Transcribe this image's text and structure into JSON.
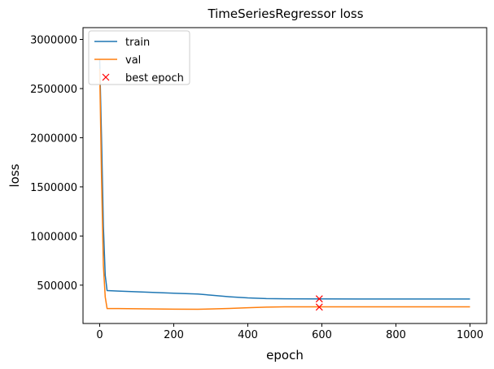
{
  "chart_data": {
    "type": "line",
    "title": "TimeSeriesRegressor loss",
    "xlabel": "epoch",
    "ylabel": "loss",
    "xlim": [
      -45,
      1045
    ],
    "ylim": [
      110000,
      3120000
    ],
    "xticks": [
      0,
      200,
      400,
      600,
      800,
      1000
    ],
    "yticks": [
      500000,
      1000000,
      1500000,
      2000000,
      2500000,
      3000000
    ],
    "series": [
      {
        "name": "train",
        "color": "#1f77b4",
        "x": [
          0,
          5,
          10,
          15,
          20,
          50,
          100,
          150,
          200,
          265,
          300,
          350,
          400,
          450,
          500,
          600,
          700,
          800,
          900,
          1000
        ],
        "y": [
          2800000,
          2000000,
          1100000,
          600000,
          445000,
          440000,
          432000,
          425000,
          418000,
          410000,
          398000,
          382000,
          370000,
          363000,
          361000,
          360000,
          359500,
          359000,
          359000,
          359000
        ]
      },
      {
        "name": "val",
        "color": "#ff7f0e",
        "x": [
          0,
          5,
          10,
          15,
          20,
          50,
          100,
          150,
          200,
          265,
          300,
          350,
          400,
          450,
          500,
          600,
          700,
          800,
          900,
          1000
        ],
        "y": [
          2700000,
          1600000,
          700000,
          380000,
          262000,
          262000,
          260000,
          258000,
          256000,
          255000,
          258000,
          263000,
          270000,
          276000,
          279000,
          280000,
          280000,
          280000,
          280000,
          280000
        ]
      },
      {
        "name": "best epoch",
        "color": "#ff0000",
        "marker": "x",
        "x": [
          593,
          593
        ],
        "y": [
          361000,
          277000
        ]
      }
    ],
    "grid": false,
    "legend_position": "upper left"
  }
}
